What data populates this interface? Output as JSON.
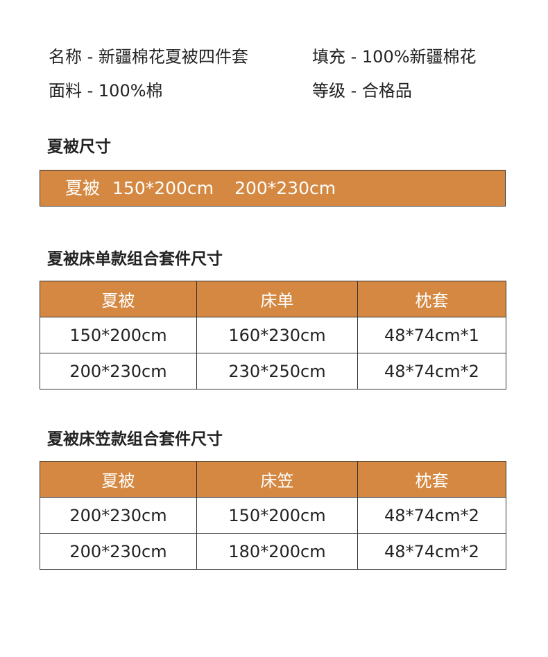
{
  "info": [
    {
      "label": "名称 - 新疆棉花夏被四件套"
    },
    {
      "label": "填充 - 100%新疆棉花"
    },
    {
      "label": "面料 - 100%棉"
    },
    {
      "label": "等级 - 合格品"
    }
  ],
  "size": {
    "title": "夏被尺寸",
    "name": "夏被",
    "size1": "150*200cm",
    "size2": "200*230cm"
  },
  "table1": {
    "title": "夏被床单款组合套件尺寸",
    "headers": [
      "夏被",
      "床单",
      "枕套"
    ],
    "rows": [
      [
        "150*200cm",
        "160*230cm",
        "48*74cm*1"
      ],
      [
        "200*230cm",
        "230*250cm",
        "48*74cm*2"
      ]
    ]
  },
  "table2": {
    "title": "夏被床笠款组合套件尺寸",
    "headers": [
      "夏被",
      "床笠",
      "枕套"
    ],
    "rows": [
      [
        "200*230cm",
        "150*200cm",
        "48*74cm*2"
      ],
      [
        "200*230cm",
        "180*200cm",
        "48*74cm*2"
      ]
    ]
  },
  "colors": {
    "accent": "#D48841"
  }
}
